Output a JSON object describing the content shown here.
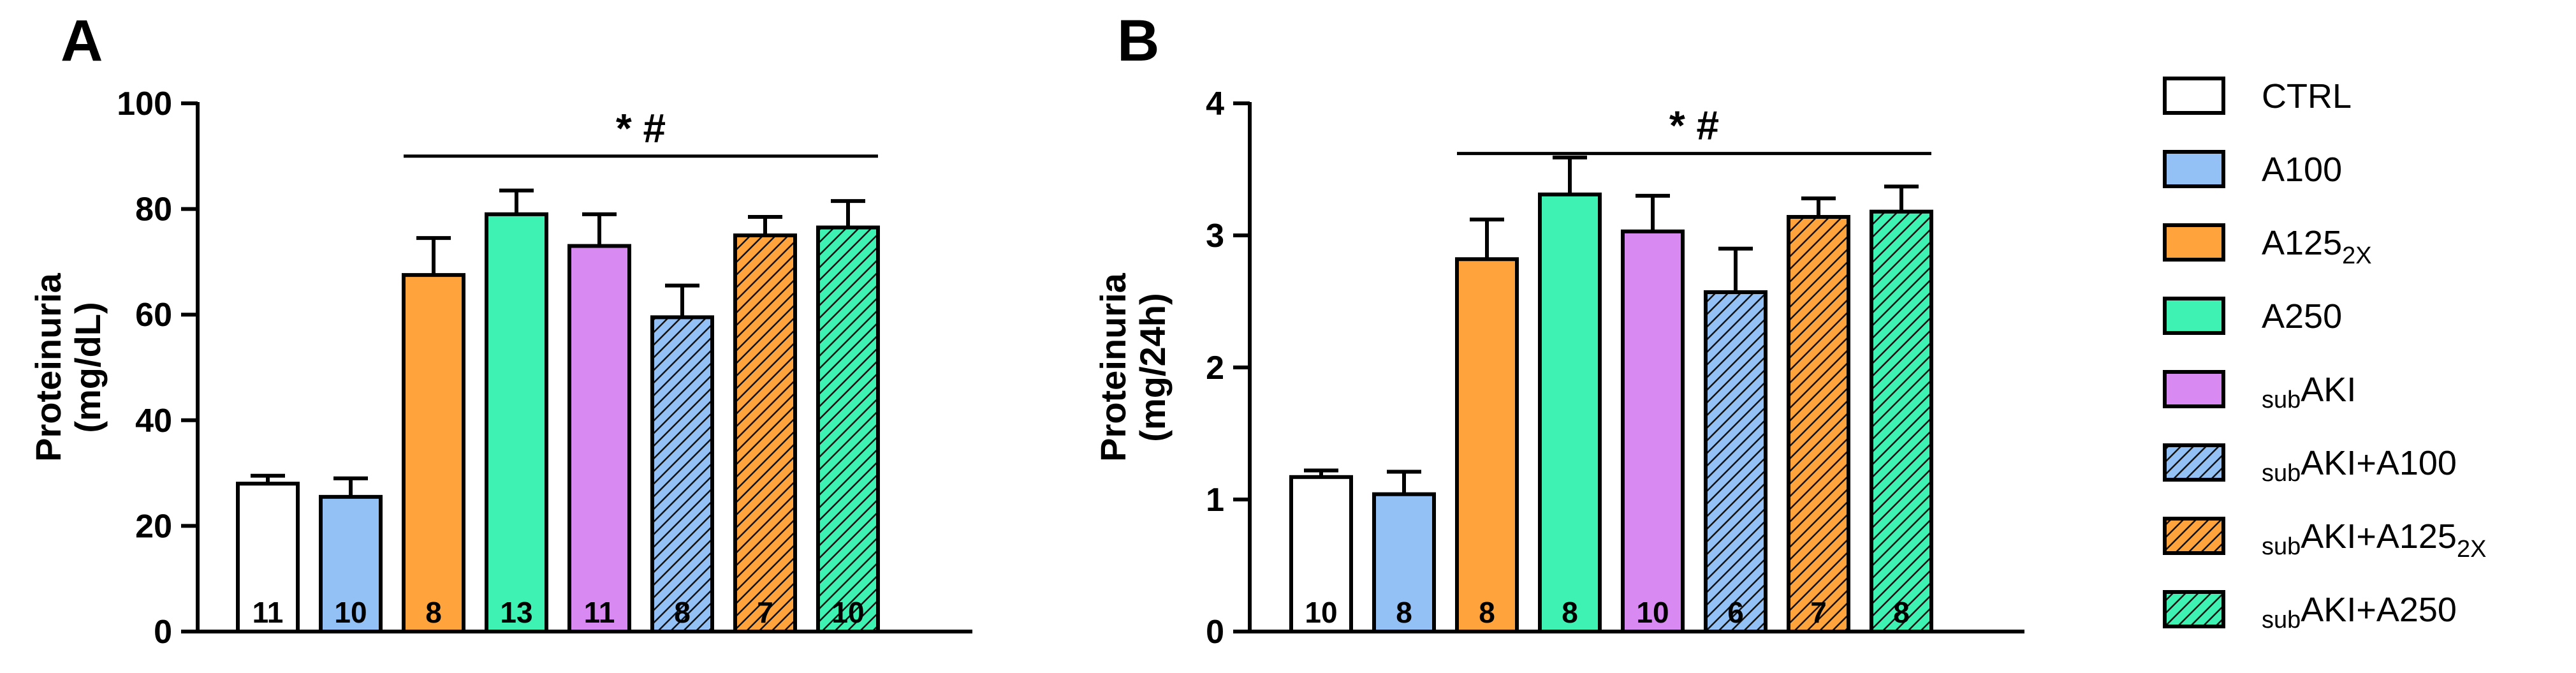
{
  "chart_data": [
    {
      "type": "bar",
      "panel": "A",
      "ylabel_lines": [
        "Proteinuria",
        "(mg/dL)"
      ],
      "ylim": [
        0,
        100
      ],
      "yticks": [
        "0",
        "20",
        "40",
        "60",
        "80",
        "100"
      ],
      "values": [
        28,
        25.5,
        67.5,
        79,
        73,
        59.5,
        75,
        76.5
      ],
      "errors": [
        1.5,
        3.5,
        7,
        4.5,
        6,
        6,
        3.5,
        5
      ],
      "counts": [
        "11",
        "10",
        "8",
        "13",
        "11",
        "8",
        "7",
        "10"
      ],
      "significance": {
        "label": "* #",
        "from_index": 2,
        "to_index": 7,
        "y": 90
      }
    },
    {
      "type": "bar",
      "panel": "B",
      "ylabel_lines": [
        "Proteinuria",
        "(mg/24h)"
      ],
      "ylim": [
        0,
        4
      ],
      "yticks": [
        "0",
        "1",
        "2",
        "3",
        "4"
      ],
      "values": [
        1.17,
        1.04,
        2.82,
        3.31,
        3.03,
        2.57,
        3.14,
        3.18
      ],
      "errors": [
        0.05,
        0.17,
        0.3,
        0.28,
        0.27,
        0.33,
        0.14,
        0.19
      ],
      "counts": [
        "10",
        "8",
        "8",
        "8",
        "10",
        "6",
        "7",
        "8"
      ],
      "significance": {
        "label": "* #",
        "from_index": 2,
        "to_index": 7,
        "y": 3.62
      }
    }
  ],
  "series": [
    {
      "name": "CTRL",
      "base": "CTRL",
      "sub": "",
      "prefix": "",
      "color": "#ffffff",
      "hatched": false
    },
    {
      "name": "A100",
      "base": "A100",
      "sub": "",
      "prefix": "",
      "color": "#93c0f5",
      "hatched": false
    },
    {
      "name": "A125 2X",
      "base": "A125",
      "sub": "2X",
      "prefix": "",
      "color": "#ffa43d",
      "hatched": false
    },
    {
      "name": "A250",
      "base": "A250",
      "sub": "",
      "prefix": "",
      "color": "#3ef2b3",
      "hatched": false
    },
    {
      "name": "sub AKI",
      "base": "AKI",
      "sub": "",
      "prefix": "sub",
      "color": "#d98af2",
      "hatched": false
    },
    {
      "name": "sub AKI+A100",
      "base": "AKI+A100",
      "sub": "",
      "prefix": "sub",
      "color": "#93c0f5",
      "hatched": true
    },
    {
      "name": "sub AKI+A125 2X",
      "base": "AKI+A125",
      "sub": "2X",
      "prefix": "sub",
      "color": "#ffa43d",
      "hatched": true
    },
    {
      "name": "sub AKI+A250",
      "base": "AKI+A250",
      "sub": "",
      "prefix": "sub",
      "color": "#3ef2b3",
      "hatched": true
    }
  ]
}
